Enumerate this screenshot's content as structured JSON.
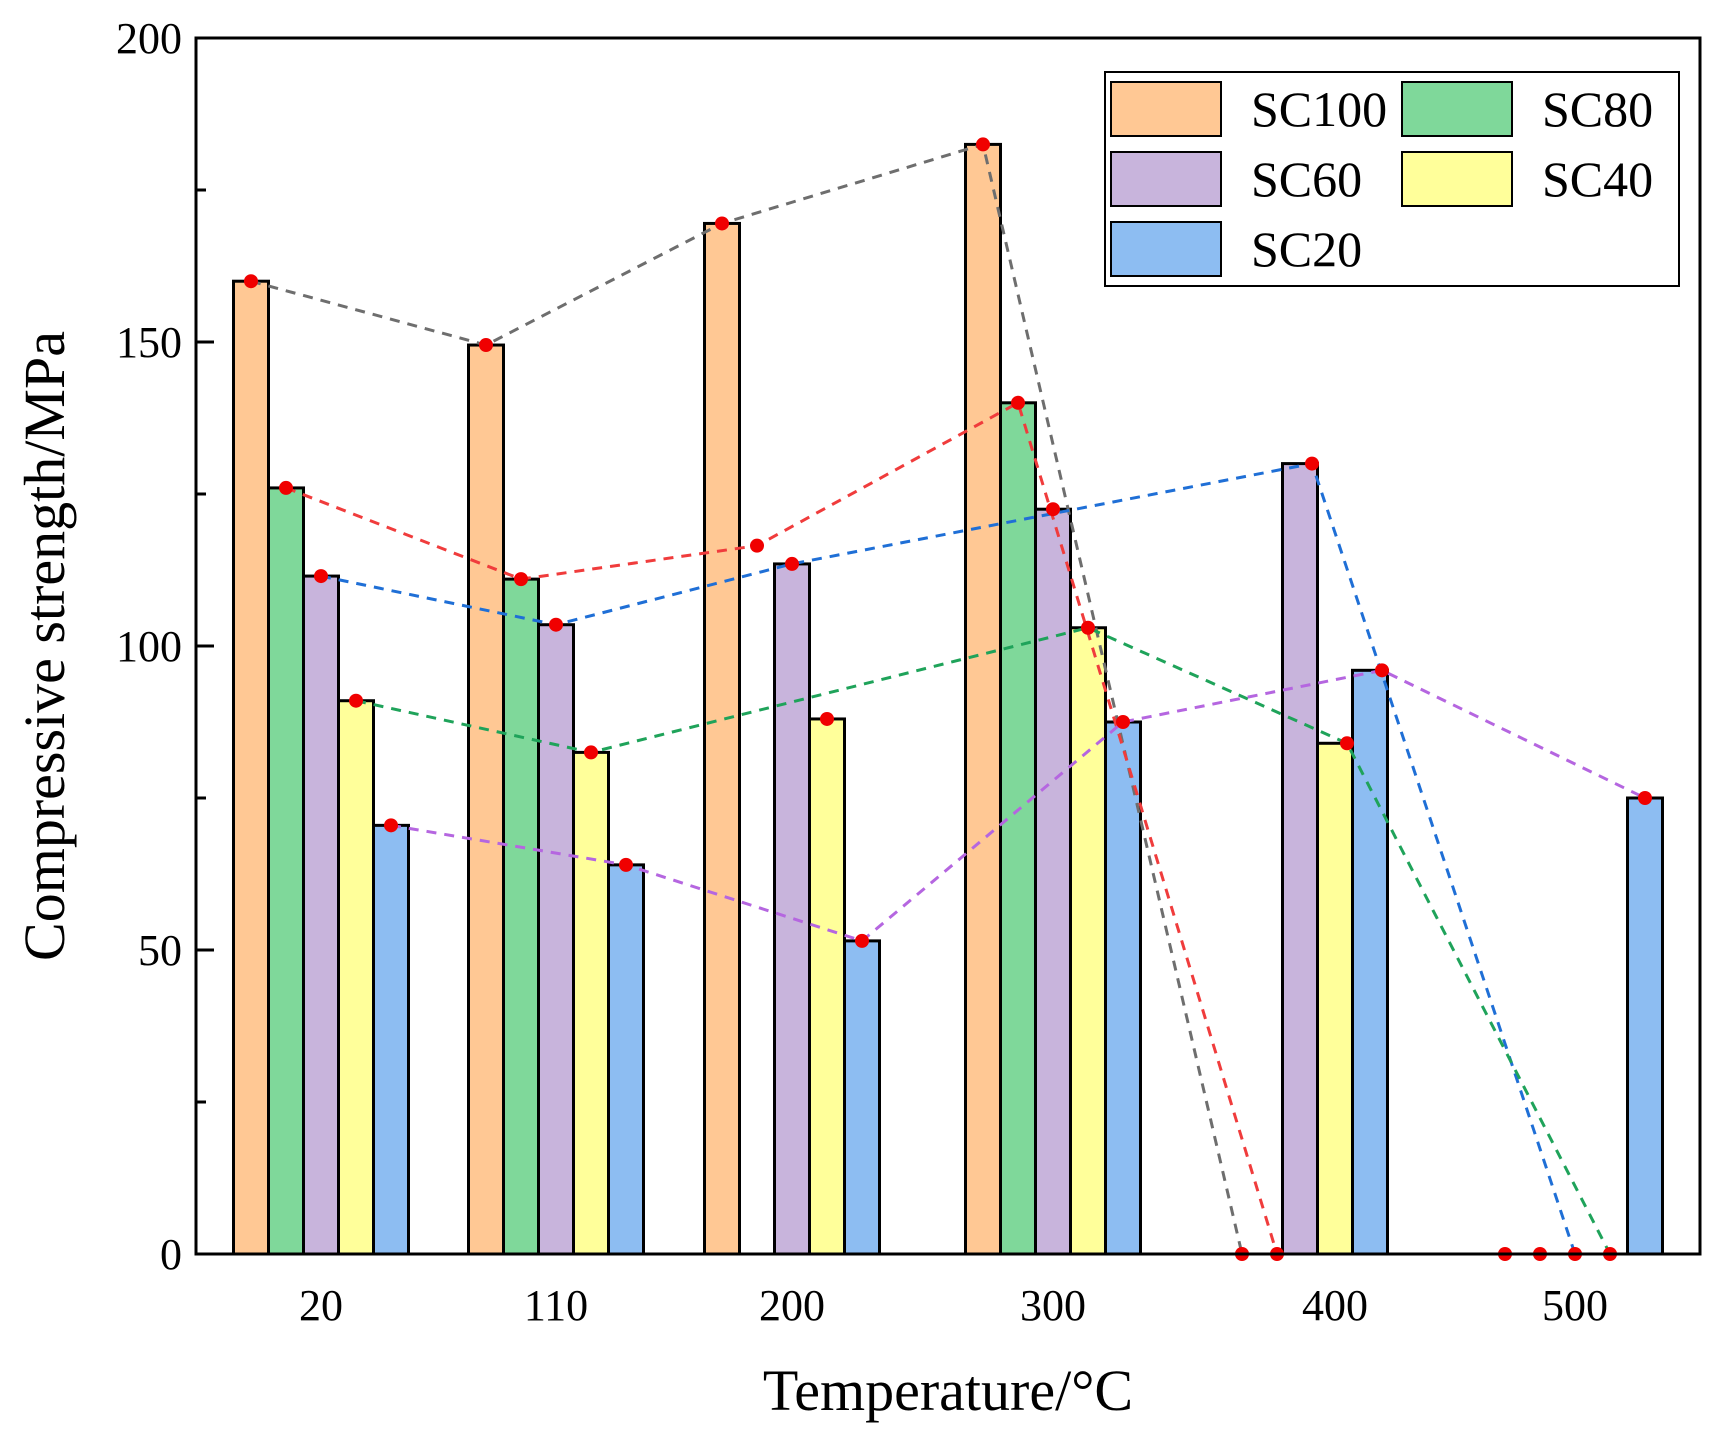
{
  "chart_data": {
    "type": "bar",
    "xlabel": "Temperature/°C",
    "ylabel": "Compressive strength/MPa",
    "ylim": [
      0,
      200
    ],
    "yticks": [
      0,
      50,
      100,
      150,
      200
    ],
    "categories": [
      "20",
      "110",
      "200",
      "300",
      "400",
      "500"
    ],
    "series": [
      {
        "name": "SC100",
        "color": "#FFC894",
        "line_color": "#6E6E6E",
        "values": [
          160,
          149.5,
          169.5,
          182.5,
          0,
          0
        ]
      },
      {
        "name": "SC80",
        "color": "#7FD89A",
        "line_color": "#F03C3C",
        "values": [
          126,
          111,
          null,
          140,
          0,
          0
        ]
      },
      {
        "name": "SC60",
        "color": "#C8B4DC",
        "line_color": "#1F6FD6",
        "values": [
          111.5,
          103.5,
          113.5,
          122.5,
          130,
          0
        ]
      },
      {
        "name": "SC40",
        "color": "#FFFF9A",
        "line_color": "#1FA35A",
        "values": [
          91,
          82.5,
          88,
          103,
          84,
          0
        ]
      },
      {
        "name": "SC20",
        "color": "#8DBDF2",
        "line_color": "#B566E0",
        "values": [
          70.5,
          64,
          51.5,
          87.5,
          96,
          75
        ]
      }
    ],
    "legend_position": "top-right"
  },
  "line_overlay": [
    {
      "name": "SC100-trend",
      "color": "#6E6E6E",
      "points": [
        [
          "20",
          160
        ],
        [
          "110",
          149.5
        ],
        [
          "200",
          169.5
        ],
        [
          "300",
          182.5
        ],
        [
          "400",
          0
        ]
      ]
    },
    {
      "name": "SC80-trend",
      "color": "#F03C3C",
      "points": [
        [
          "20",
          126
        ],
        [
          "110",
          111
        ],
        [
          "200",
          116.5
        ],
        [
          "300",
          140
        ],
        [
          "400",
          0
        ]
      ]
    },
    {
      "name": "SC60-trend",
      "color": "#1F6FD6",
      "points": [
        [
          "20",
          111.5
        ],
        [
          "110",
          103.5
        ],
        [
          "200",
          113.5
        ],
        [
          "400",
          130
        ],
        [
          "500",
          0
        ]
      ]
    },
    {
      "name": "SC40-trend",
      "color": "#1FA35A",
      "points": [
        [
          "20",
          91
        ],
        [
          "110",
          82.5
        ],
        [
          "300",
          103
        ],
        [
          "400",
          84
        ],
        [
          "500",
          0
        ]
      ]
    },
    {
      "name": "SC20-trend",
      "color": "#B566E0",
      "points": [
        [
          "20",
          70.5
        ],
        [
          "110",
          64
        ],
        [
          "200",
          51.5
        ],
        [
          "300",
          87.5
        ],
        [
          "400",
          96
        ],
        [
          "500",
          75
        ]
      ]
    }
  ]
}
